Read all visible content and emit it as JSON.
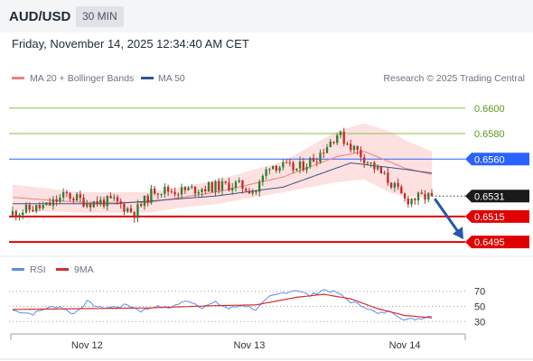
{
  "header": {
    "pair": "AUD/USD",
    "interval": "30 MIN",
    "timestamp": "Friday, November 14, 2025 12:34:40 AM CET"
  },
  "colors": {
    "up_candle": "#2e7d32",
    "down_candle": "#c62828",
    "ma20": "#f08080",
    "bollinger_fill": "#fde0e0",
    "ma50": "#34568b",
    "resistance": "#8bc34a",
    "pivot": "#2962ff",
    "support": "#e00000",
    "rsi": "#5b8def",
    "rsi_ma": "#d32f2f",
    "arrow": "#2757a8"
  },
  "chart_data": [
    {
      "type": "candlestick",
      "legend": [
        {
          "name": "MA 20 + Bollinger Bands",
          "color": "#f08080"
        },
        {
          "name": "MA 50",
          "color": "#34568b"
        }
      ],
      "credit": "Research © 2025 Trading Central",
      "ylim": [
        0.6488,
        0.6614
      ],
      "x_ticks": [
        {
          "label": "Nov 12",
          "index": 22
        },
        {
          "label": "Nov 13",
          "index": 70
        },
        {
          "label": "Nov 14",
          "index": 116
        }
      ],
      "levels": [
        {
          "value": 0.66,
          "label": "0.6600",
          "kind": "resistance"
        },
        {
          "value": 0.658,
          "label": "0.6580",
          "kind": "resistance"
        },
        {
          "value": 0.656,
          "label": "0.6560",
          "kind": "pivot"
        },
        {
          "value": 0.6531,
          "label": "0.6531",
          "kind": "last"
        },
        {
          "value": 0.6515,
          "label": "0.6515",
          "kind": "support"
        },
        {
          "value": 0.6495,
          "label": "0.6495",
          "kind": "support"
        }
      ],
      "last_price": 0.6531,
      "close_anchors": [
        [
          0,
          0.6518
        ],
        [
          10,
          0.6523
        ],
        [
          16,
          0.6532
        ],
        [
          22,
          0.6526
        ],
        [
          30,
          0.6527
        ],
        [
          36,
          0.6518
        ],
        [
          42,
          0.6536
        ],
        [
          50,
          0.6535
        ],
        [
          58,
          0.6538
        ],
        [
          66,
          0.654
        ],
        [
          72,
          0.6535
        ],
        [
          76,
          0.6556
        ],
        [
          84,
          0.6552
        ],
        [
          90,
          0.6562
        ],
        [
          96,
          0.658
        ],
        [
          102,
          0.6566
        ],
        [
          108,
          0.6551
        ],
        [
          112,
          0.6541
        ],
        [
          116,
          0.6528
        ],
        [
          124,
          0.6531
        ]
      ],
      "ma20_anchors": [
        [
          0,
          0.653
        ],
        [
          20,
          0.6526
        ],
        [
          40,
          0.6526
        ],
        [
          60,
          0.6534
        ],
        [
          80,
          0.6546
        ],
        [
          96,
          0.6562
        ],
        [
          104,
          0.6566
        ],
        [
          116,
          0.6553
        ],
        [
          124,
          0.6548
        ]
      ],
      "ma50_anchors": [
        [
          0,
          0.6525
        ],
        [
          30,
          0.6525
        ],
        [
          60,
          0.6531
        ],
        [
          80,
          0.6538
        ],
        [
          100,
          0.6557
        ],
        [
          116,
          0.6552
        ],
        [
          124,
          0.6549
        ]
      ],
      "band_width_anchors": [
        [
          0,
          0.001
        ],
        [
          20,
          0.0008
        ],
        [
          50,
          0.0008
        ],
        [
          80,
          0.0012
        ],
        [
          96,
          0.002
        ],
        [
          112,
          0.0024
        ],
        [
          124,
          0.0018
        ]
      ],
      "projection": {
        "from": 0.6531,
        "to": 0.6495
      }
    },
    {
      "type": "line",
      "legend": [
        {
          "name": "RSI",
          "color": "#5b8def"
        },
        {
          "name": "9MA",
          "color": "#d32f2f"
        }
      ],
      "ylim": [
        22,
        78
      ],
      "y_ticks": [
        {
          "label": "70",
          "value": 70
        },
        {
          "label": "50",
          "value": 50
        },
        {
          "label": "30",
          "value": 30
        }
      ],
      "rsi_anchors": [
        [
          0,
          45
        ],
        [
          6,
          40
        ],
        [
          10,
          48
        ],
        [
          14,
          50
        ],
        [
          18,
          40
        ],
        [
          22,
          56
        ],
        [
          26,
          48
        ],
        [
          30,
          49
        ],
        [
          34,
          52
        ],
        [
          38,
          44
        ],
        [
          42,
          50
        ],
        [
          46,
          48
        ],
        [
          52,
          58
        ],
        [
          56,
          49
        ],
        [
          60,
          55
        ],
        [
          64,
          47
        ],
        [
          68,
          52
        ],
        [
          72,
          46
        ],
        [
          76,
          62
        ],
        [
          80,
          68
        ],
        [
          84,
          72
        ],
        [
          88,
          64
        ],
        [
          92,
          72
        ],
        [
          96,
          68
        ],
        [
          100,
          56
        ],
        [
          104,
          50
        ],
        [
          108,
          40
        ],
        [
          112,
          44
        ],
        [
          116,
          32
        ],
        [
          120,
          34
        ],
        [
          124,
          38
        ]
      ],
      "ma_anchors": [
        [
          0,
          46
        ],
        [
          20,
          47
        ],
        [
          40,
          48
        ],
        [
          60,
          51
        ],
        [
          72,
          52
        ],
        [
          84,
          62
        ],
        [
          92,
          66
        ],
        [
          100,
          60
        ],
        [
          108,
          47
        ],
        [
          116,
          38
        ],
        [
          124,
          35
        ]
      ]
    }
  ]
}
